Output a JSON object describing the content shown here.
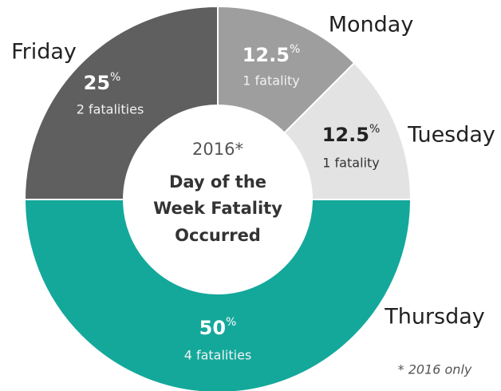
{
  "chart_data": {
    "type": "donut",
    "subtitle": "2016*",
    "title": [
      "Day of the",
      "Week Fatality",
      "Occurred"
    ],
    "categories": [
      "Monday",
      "Tuesday",
      "Thursday",
      "Friday"
    ],
    "values": [
      12.5,
      12.5,
      50,
      25
    ],
    "unit": "%",
    "details": [
      "1 fatality",
      "1 fatality",
      "4 fatalities",
      "2 fatalities"
    ],
    "colors": [
      "#9e9e9e",
      "#e3e3e3",
      "#14a89b",
      "#5f5f5f"
    ],
    "footnote": "* 2016 only"
  }
}
